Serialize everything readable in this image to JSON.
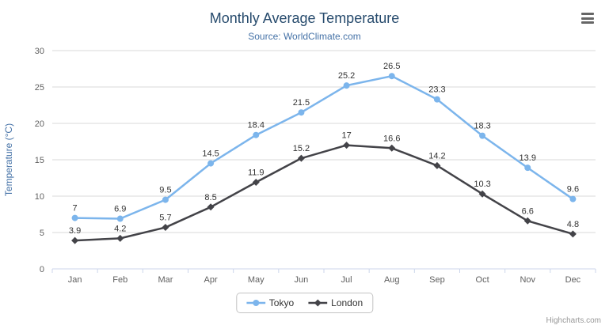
{
  "header": {
    "title": "Monthly Average Temperature",
    "subtitle": "Source: WorldClimate.com"
  },
  "icons": {
    "export_menu": "hamburger-menu"
  },
  "credits": {
    "label": "Highcharts.com"
  },
  "colors": {
    "title": "#274b6d",
    "subtitle": "#4572A7",
    "axis_title": "#4572A7",
    "axis_labels": "#606060",
    "data_label": "#333333",
    "gridline": "#d8d8d8",
    "axis_line": "#ccd6eb",
    "tokyo": "#7cb5ec",
    "london": "#434348"
  },
  "chart_data": {
    "type": "line",
    "title": "Monthly Average Temperature",
    "subtitle": "Source: WorldClimate.com",
    "categories": [
      "Jan",
      "Feb",
      "Mar",
      "Apr",
      "May",
      "Jun",
      "Jul",
      "Aug",
      "Sep",
      "Oct",
      "Nov",
      "Dec"
    ],
    "series": [
      {
        "name": "Tokyo",
        "color": "#7cb5ec",
        "marker": "circle",
        "values": [
          7,
          6.9,
          9.5,
          14.5,
          18.4,
          21.5,
          25.2,
          26.5,
          23.3,
          18.3,
          13.9,
          9.6
        ]
      },
      {
        "name": "London",
        "color": "#434348",
        "marker": "diamond",
        "values": [
          3.9,
          4.2,
          5.7,
          8.5,
          11.9,
          15.2,
          17,
          16.6,
          14.2,
          10.3,
          6.6,
          4.8
        ]
      }
    ],
    "xlabel": "",
    "ylabel": "Temperature (°C)",
    "ylim": [
      0,
      30
    ],
    "yticks": [
      0,
      5,
      10,
      15,
      20,
      25,
      30
    ],
    "grid": true,
    "legend_position": "bottom",
    "data_labels": true
  }
}
